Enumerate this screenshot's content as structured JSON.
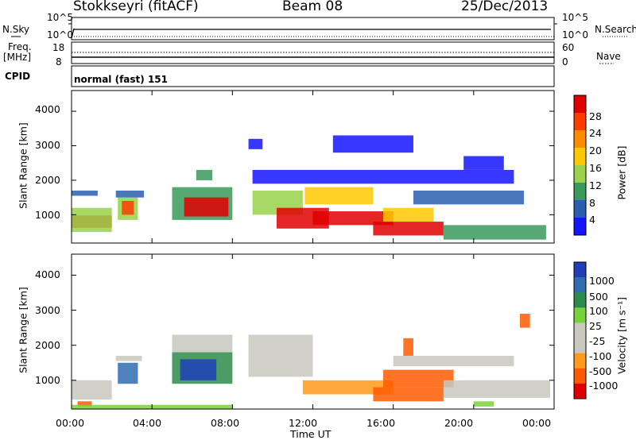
{
  "header": {
    "station": "Stokkseyri (fitACF)",
    "beam": "Beam 08",
    "date": "25/Dec/2013"
  },
  "strip_panels": {
    "nsky": {
      "label": "N.Sky",
      "ticks": [
        "10^5",
        "10^0"
      ]
    },
    "nsearch": {
      "label": "N.Search",
      "ticks": [
        "10^5",
        "10^0"
      ]
    },
    "freq": {
      "label_line1": "Freq.",
      "label_line2": "[MHz]",
      "ticks": [
        "18",
        "8"
      ]
    },
    "nave": {
      "label": "Nave",
      "ticks": [
        "60",
        "0"
      ]
    },
    "cpid": {
      "label": "CPID",
      "value": "normal (fast) 151"
    }
  },
  "chart_data": [
    {
      "type": "heatmap",
      "name": "power",
      "xlabel": "",
      "ylabel": "Slant Range [km]",
      "x_ticks": [
        "00:00",
        "04:00",
        "08:00",
        "12:00",
        "16:00",
        "20:00",
        "00:00"
      ],
      "xlim_hours": [
        0,
        24
      ],
      "y_ticks": [
        1000,
        2000,
        3000,
        4000
      ],
      "ylim": [
        180,
        4600
      ],
      "colorbar": {
        "label": "Power [dB]",
        "ticks": [
          "28",
          "24",
          "20",
          "16",
          "12",
          "8",
          "4"
        ],
        "colors": [
          "#e00000",
          "#ff3c00",
          "#ff8c00",
          "#ffc800",
          "#9ad24a",
          "#3a9a5a",
          "#2a5fb0",
          "#1414ff"
        ]
      },
      "regions": [
        {
          "t0": 0.0,
          "t1": 2.0,
          "r0": 620,
          "r1": 980,
          "level": 0
        },
        {
          "t0": 0.0,
          "t1": 2.0,
          "r0": 500,
          "r1": 1200,
          "level": 4
        },
        {
          "t0": 0.0,
          "t1": 1.3,
          "r0": 1550,
          "r1": 1700,
          "level": 6
        },
        {
          "t0": 2.3,
          "t1": 3.3,
          "r0": 850,
          "r1": 1500,
          "level": 4
        },
        {
          "t0": 2.5,
          "t1": 3.1,
          "r0": 1000,
          "r1": 1400,
          "level": 1
        },
        {
          "t0": 2.2,
          "t1": 3.6,
          "r0": 1500,
          "r1": 1700,
          "level": 6
        },
        {
          "t0": 5.0,
          "t1": 8.0,
          "r0": 850,
          "r1": 1800,
          "level": 5
        },
        {
          "t0": 5.6,
          "t1": 7.8,
          "r0": 950,
          "r1": 1500,
          "level": 0
        },
        {
          "t0": 6.2,
          "t1": 7.0,
          "r0": 2000,
          "r1": 2300,
          "level": 5
        },
        {
          "t0": 8.8,
          "t1": 9.5,
          "r0": 2900,
          "r1": 3200,
          "level": 7
        },
        {
          "t0": 9.0,
          "t1": 11.5,
          "r0": 1000,
          "r1": 1700,
          "level": 4
        },
        {
          "t0": 10.2,
          "t1": 12.8,
          "r0": 600,
          "r1": 1200,
          "level": 0
        },
        {
          "t0": 11.6,
          "t1": 15.0,
          "r0": 1300,
          "r1": 1800,
          "level": 3
        },
        {
          "t0": 12.0,
          "t1": 16.0,
          "r0": 700,
          "r1": 1100,
          "level": 0
        },
        {
          "t0": 15.0,
          "t1": 18.5,
          "r0": 400,
          "r1": 800,
          "level": 0
        },
        {
          "t0": 15.5,
          "t1": 18.0,
          "r0": 800,
          "r1": 1200,
          "level": 3
        },
        {
          "t0": 17.0,
          "t1": 22.5,
          "r0": 1300,
          "r1": 1700,
          "level": 6
        },
        {
          "t0": 18.5,
          "t1": 23.6,
          "r0": 280,
          "r1": 700,
          "level": 5
        },
        {
          "t0": 19.5,
          "t1": 21.5,
          "r0": 2300,
          "r1": 2700,
          "level": 7
        },
        {
          "t0": 9.0,
          "t1": 22.0,
          "r0": 1900,
          "r1": 2300,
          "level": 7
        },
        {
          "t0": 13.0,
          "t1": 17.0,
          "r0": 2800,
          "r1": 3300,
          "level": 7
        }
      ]
    },
    {
      "type": "heatmap",
      "name": "velocity",
      "xlabel": "Time UT",
      "ylabel": "Slant Range [km]",
      "x_ticks": [
        "00:00",
        "04:00",
        "08:00",
        "12:00",
        "16:00",
        "20:00",
        "00:00"
      ],
      "xlim_hours": [
        0,
        24
      ],
      "y_ticks": [
        1000,
        2000,
        3000,
        4000
      ],
      "ylim": [
        180,
        4600
      ],
      "colorbar": {
        "label": "Velocity [m s⁻¹]",
        "ticks": [
          "1000",
          "500",
          "100",
          "25",
          "-25",
          "-100",
          "-500",
          "-1000"
        ],
        "colors": [
          "#1f3fb8",
          "#2f6cb0",
          "#2e8a4a",
          "#7ad23a",
          "#c8c8c0",
          "#c8c8c0",
          "#ff9a1a",
          "#ff5a00",
          "#e00000"
        ]
      },
      "regions": [
        {
          "t0": 0.0,
          "t1": 2.0,
          "r0": 450,
          "r1": 1000,
          "level": 4
        },
        {
          "t0": 0.3,
          "t1": 1.0,
          "r0": 250,
          "r1": 400,
          "level": 7
        },
        {
          "t0": 2.3,
          "t1": 3.3,
          "r0": 900,
          "r1": 1500,
          "level": 1
        },
        {
          "t0": 2.2,
          "t1": 3.5,
          "r0": 1550,
          "r1": 1700,
          "level": 4
        },
        {
          "t0": 5.0,
          "t1": 8.0,
          "r0": 1800,
          "r1": 2300,
          "level": 4
        },
        {
          "t0": 5.0,
          "t1": 8.0,
          "r0": 900,
          "r1": 1800,
          "level": 2
        },
        {
          "t0": 5.4,
          "t1": 7.2,
          "r0": 1000,
          "r1": 1600,
          "level": 0
        },
        {
          "t0": 8.8,
          "t1": 12.0,
          "r0": 1100,
          "r1": 2300,
          "level": 4
        },
        {
          "t0": 11.5,
          "t1": 16.0,
          "r0": 600,
          "r1": 1000,
          "level": 6
        },
        {
          "t0": 15.0,
          "t1": 18.5,
          "r0": 400,
          "r1": 800,
          "level": 7
        },
        {
          "t0": 15.5,
          "t1": 19.0,
          "r0": 800,
          "r1": 1300,
          "level": 7
        },
        {
          "t0": 16.0,
          "t1": 22.0,
          "r0": 1400,
          "r1": 1700,
          "level": 4
        },
        {
          "t0": 18.5,
          "t1": 23.8,
          "r0": 500,
          "r1": 1000,
          "level": 4
        },
        {
          "t0": 20.0,
          "t1": 21.0,
          "r0": 250,
          "r1": 400,
          "level": 3
        },
        {
          "t0": 22.3,
          "t1": 22.8,
          "r0": 2500,
          "r1": 2900,
          "level": 7
        },
        {
          "t0": 0.0,
          "t1": 8.0,
          "r0": 180,
          "r1": 300,
          "level": 3
        },
        {
          "t0": 16.5,
          "t1": 17.0,
          "r0": 1700,
          "r1": 2200,
          "level": 7
        }
      ]
    }
  ]
}
